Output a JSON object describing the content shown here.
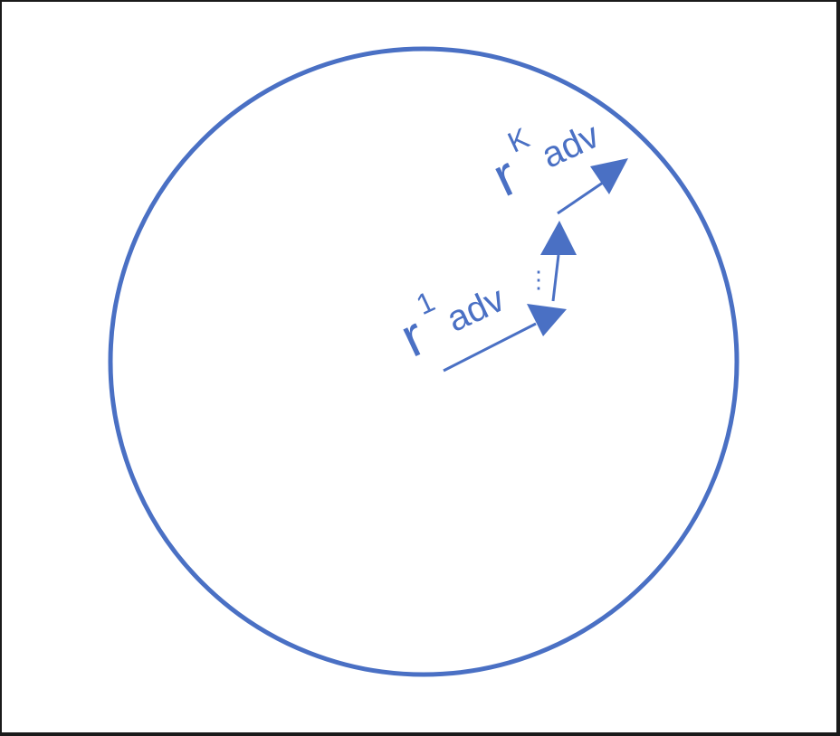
{
  "colors": {
    "stroke": "#4a70c4",
    "background": "#ffffff",
    "border": "#1a1a1a"
  },
  "labels": {
    "r1": {
      "base": "r",
      "sup": "1",
      "sub": "adv"
    },
    "rK": {
      "base": "r",
      "sup": "K",
      "sub": "adv"
    },
    "ellipsis": "⋮"
  }
}
